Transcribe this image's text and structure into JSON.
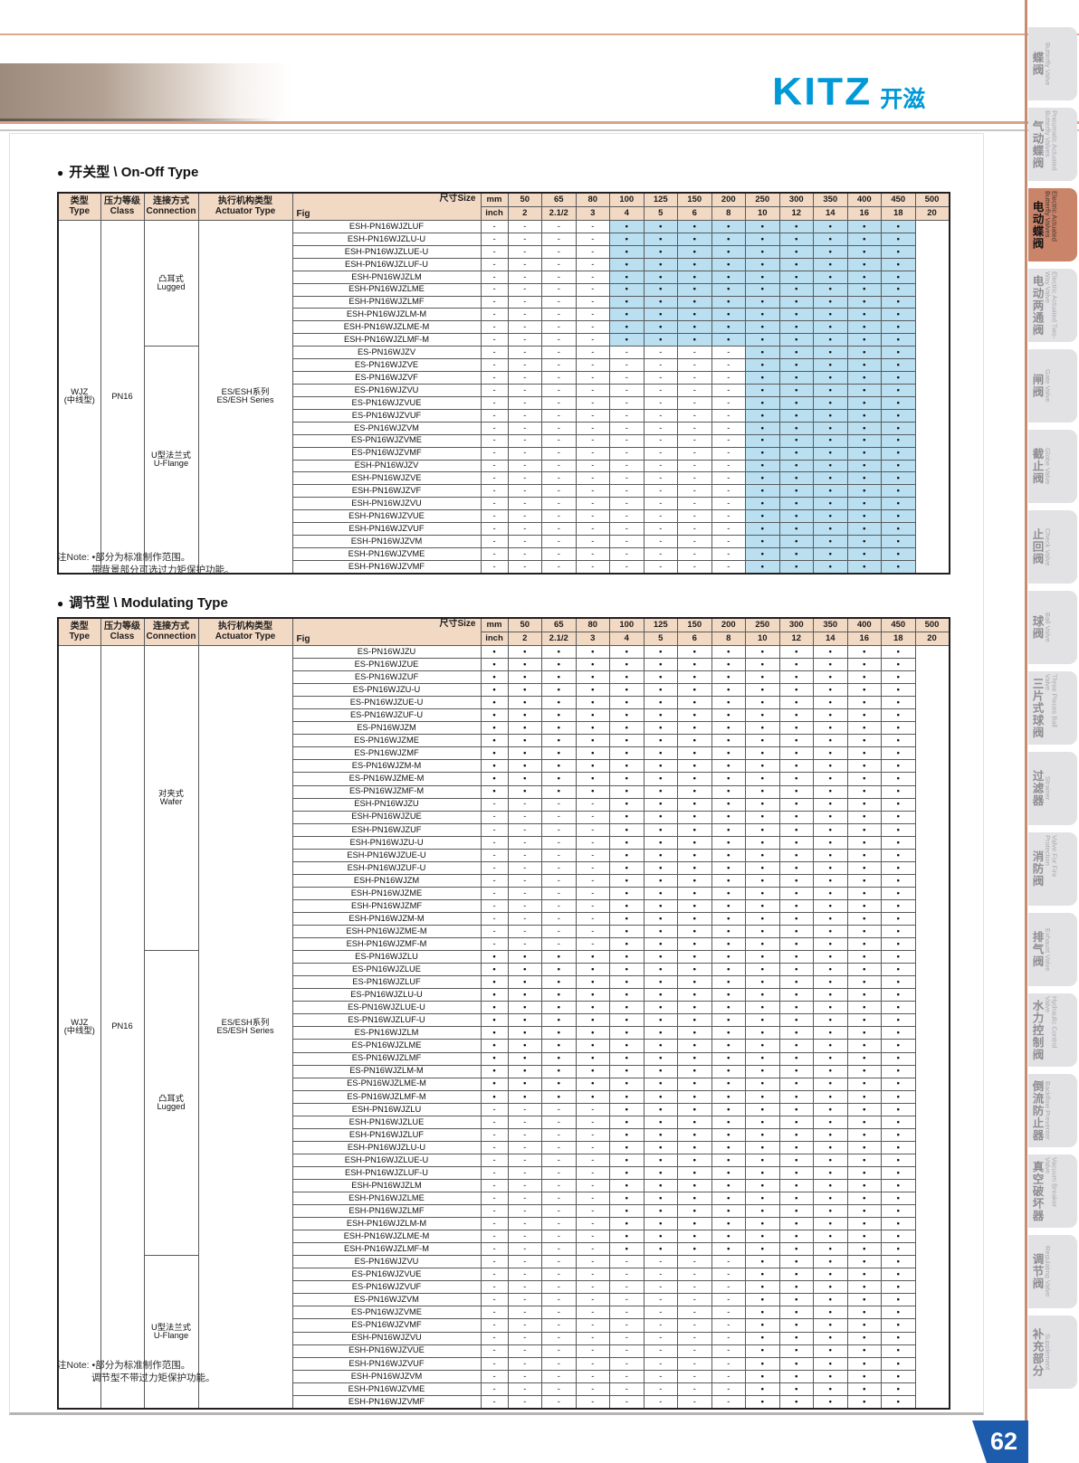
{
  "logo": {
    "brand": "KITZ",
    "brand_cn": "开滋"
  },
  "page": {
    "number": "62"
  },
  "colors": {
    "header_bg": "#f2d9c4",
    "highlight_bg": "#b9dff0",
    "logo_blue": "#0099d8",
    "spine_line": "#c58e73",
    "active_tab": "#c9846a",
    "page_badge": "#1d5cac"
  },
  "columns": {
    "type_zh": "类型",
    "type_en": "Type",
    "class_zh": "压力等级",
    "class_en": "Class",
    "conn_zh": "连接方式",
    "conn_en": "Connection",
    "act_zh": "执行机构类型",
    "act_en": "Actuator Type"
  },
  "size_header": {
    "size_label": "尺寸Size",
    "fig_label": "Fig",
    "mm_label": "mm",
    "inch_label": "inch",
    "mm": [
      "50",
      "65",
      "80",
      "100",
      "125",
      "150",
      "200",
      "250",
      "300",
      "350",
      "400",
      "450",
      "500"
    ],
    "inch": [
      "2",
      "2.1/2",
      "3",
      "4",
      "5",
      "6",
      "8",
      "10",
      "12",
      "14",
      "16",
      "18",
      "20"
    ]
  },
  "patterns": {
    "dash4_dot9_hl": {
      "marks": "----•••••••••",
      "hl": "0000111111111"
    },
    "dash8_dot5_hl": {
      "marks": "--------•••••",
      "hl": "0000000011111"
    },
    "dot13": {
      "marks": "•••••••••••••",
      "hl": "0000000000000"
    },
    "dash4_dot9": {
      "marks": "----•••••••••",
      "hl": "0000000000000"
    },
    "dash8_dot5": {
      "marks": "--------•••••",
      "hl": "0000000000000"
    }
  },
  "on_off": {
    "title": "开关型 \\ On-Off Type",
    "type_line1": "WJZ",
    "type_line2": "(中线型)",
    "class_label": "PN16",
    "actuator_line1": "ES/ESH系列",
    "actuator_line2": "ES/ESH Series",
    "connections": [
      {
        "zh": "凸耳式",
        "en": "Lugged",
        "rows": 10
      },
      {
        "zh": "U型法兰式",
        "en": "U-Flange",
        "rows": 18
      }
    ],
    "rows": [
      {
        "fig": "ESH-PN16WJZLUF",
        "pattern": "dash4_dot9_hl"
      },
      {
        "fig": "ESH-PN16WJZLU-U",
        "pattern": "dash4_dot9_hl"
      },
      {
        "fig": "ESH-PN16WJZLUE-U",
        "pattern": "dash4_dot9_hl"
      },
      {
        "fig": "ESH-PN16WJZLUF-U",
        "pattern": "dash4_dot9_hl"
      },
      {
        "fig": "ESH-PN16WJZLM",
        "pattern": "dash4_dot9_hl"
      },
      {
        "fig": "ESH-PN16WJZLME",
        "pattern": "dash4_dot9_hl"
      },
      {
        "fig": "ESH-PN16WJZLMF",
        "pattern": "dash4_dot9_hl"
      },
      {
        "fig": "ESH-PN16WJZLM-M",
        "pattern": "dash4_dot9_hl"
      },
      {
        "fig": "ESH-PN16WJZLME-M",
        "pattern": "dash4_dot9_hl"
      },
      {
        "fig": "ESH-PN16WJZLMF-M",
        "pattern": "dash4_dot9_hl"
      },
      {
        "fig": "ES-PN16WJZV",
        "pattern": "dash8_dot5_hl"
      },
      {
        "fig": "ES-PN16WJZVE",
        "pattern": "dash8_dot5_hl"
      },
      {
        "fig": "ES-PN16WJZVF",
        "pattern": "dash8_dot5_hl"
      },
      {
        "fig": "ES-PN16WJZVU",
        "pattern": "dash8_dot5_hl"
      },
      {
        "fig": "ES-PN16WJZVUE",
        "pattern": "dash8_dot5_hl"
      },
      {
        "fig": "ES-PN16WJZVUF",
        "pattern": "dash8_dot5_hl"
      },
      {
        "fig": "ES-PN16WJZVM",
        "pattern": "dash8_dot5_hl"
      },
      {
        "fig": "ES-PN16WJZVME",
        "pattern": "dash8_dot5_hl"
      },
      {
        "fig": "ES-PN16WJZVMF",
        "pattern": "dash8_dot5_hl"
      },
      {
        "fig": "ESH-PN16WJZV",
        "pattern": "dash8_dot5_hl"
      },
      {
        "fig": "ESH-PN16WJZVE",
        "pattern": "dash8_dot5_hl"
      },
      {
        "fig": "ESH-PN16WJZVF",
        "pattern": "dash8_dot5_hl"
      },
      {
        "fig": "ESH-PN16WJZVU",
        "pattern": "dash8_dot5_hl"
      },
      {
        "fig": "ESH-PN16WJZVUE",
        "pattern": "dash8_dot5_hl"
      },
      {
        "fig": "ESH-PN16WJZVUF",
        "pattern": "dash8_dot5_hl"
      },
      {
        "fig": "ESH-PN16WJZVM",
        "pattern": "dash8_dot5_hl"
      },
      {
        "fig": "ESH-PN16WJZVME",
        "pattern": "dash8_dot5_hl"
      },
      {
        "fig": "ESH-PN16WJZVMF",
        "pattern": "dash8_dot5_hl"
      }
    ],
    "note_prefix": "注Note:",
    "note_line1": "•部分为标准制作范围。",
    "note_line2": "带背景部分可选过力矩保护功能。"
  },
  "modulating": {
    "title": "调节型 \\ Modulating Type",
    "type_line1": "WJZ",
    "type_line2": "(中线型)",
    "class_label": "PN16",
    "actuator_line1": "ES/ESH系列",
    "actuator_line2": "ES/ESH Series",
    "connections": [
      {
        "zh": "对夹式",
        "en": "Wafer",
        "rows": 24
      },
      {
        "zh": "凸耳式",
        "en": "Lugged",
        "rows": 24
      },
      {
        "zh": "U型法兰式",
        "en": "U-Flange",
        "rows": 12
      }
    ],
    "rows": [
      {
        "fig": "ES-PN16WJZU",
        "pattern": "dot13"
      },
      {
        "fig": "ES-PN16WJZUE",
        "pattern": "dot13"
      },
      {
        "fig": "ES-PN16WJZUF",
        "pattern": "dot13"
      },
      {
        "fig": "ES-PN16WJZU-U",
        "pattern": "dot13"
      },
      {
        "fig": "ES-PN16WJZUE-U",
        "pattern": "dot13"
      },
      {
        "fig": "ES-PN16WJZUF-U",
        "pattern": "dot13"
      },
      {
        "fig": "ES-PN16WJZM",
        "pattern": "dot13"
      },
      {
        "fig": "ES-PN16WJZME",
        "pattern": "dot13"
      },
      {
        "fig": "ES-PN16WJZMF",
        "pattern": "dot13"
      },
      {
        "fig": "ES-PN16WJZM-M",
        "pattern": "dot13"
      },
      {
        "fig": "ES-PN16WJZME-M",
        "pattern": "dot13"
      },
      {
        "fig": "ES-PN16WJZMF-M",
        "pattern": "dot13"
      },
      {
        "fig": "ESH-PN16WJZU",
        "pattern": "dash4_dot9"
      },
      {
        "fig": "ESH-PN16WJZUE",
        "pattern": "dash4_dot9"
      },
      {
        "fig": "ESH-PN16WJZUF",
        "pattern": "dash4_dot9"
      },
      {
        "fig": "ESH-PN16WJZU-U",
        "pattern": "dash4_dot9"
      },
      {
        "fig": "ESH-PN16WJZUE-U",
        "pattern": "dash4_dot9"
      },
      {
        "fig": "ESH-PN16WJZUF-U",
        "pattern": "dash4_dot9"
      },
      {
        "fig": "ESH-PN16WJZM",
        "pattern": "dash4_dot9"
      },
      {
        "fig": "ESH-PN16WJZME",
        "pattern": "dash4_dot9"
      },
      {
        "fig": "ESH-PN16WJZMF",
        "pattern": "dash4_dot9"
      },
      {
        "fig": "ESH-PN16WJZM-M",
        "pattern": "dash4_dot9"
      },
      {
        "fig": "ESH-PN16WJZME-M",
        "pattern": "dash4_dot9"
      },
      {
        "fig": "ESH-PN16WJZMF-M",
        "pattern": "dash4_dot9"
      },
      {
        "fig": "ES-PN16WJZLU",
        "pattern": "dot13"
      },
      {
        "fig": "ES-PN16WJZLUE",
        "pattern": "dot13"
      },
      {
        "fig": "ES-PN16WJZLUF",
        "pattern": "dot13"
      },
      {
        "fig": "ES-PN16WJZLU-U",
        "pattern": "dot13"
      },
      {
        "fig": "ES-PN16WJZLUE-U",
        "pattern": "dot13"
      },
      {
        "fig": "ES-PN16WJZLUF-U",
        "pattern": "dot13"
      },
      {
        "fig": "ES-PN16WJZLM",
        "pattern": "dot13"
      },
      {
        "fig": "ES-PN16WJZLME",
        "pattern": "dot13"
      },
      {
        "fig": "ES-PN16WJZLMF",
        "pattern": "dot13"
      },
      {
        "fig": "ES-PN16WJZLM-M",
        "pattern": "dot13"
      },
      {
        "fig": "ES-PN16WJZLME-M",
        "pattern": "dot13"
      },
      {
        "fig": "ES-PN16WJZLMF-M",
        "pattern": "dot13"
      },
      {
        "fig": "ESH-PN16WJZLU",
        "pattern": "dash4_dot9"
      },
      {
        "fig": "ESH-PN16WJZLUE",
        "pattern": "dash4_dot9"
      },
      {
        "fig": "ESH-PN16WJZLUF",
        "pattern": "dash4_dot9"
      },
      {
        "fig": "ESH-PN16WJZLU-U",
        "pattern": "dash4_dot9"
      },
      {
        "fig": "ESH-PN16WJZLUE-U",
        "pattern": "dash4_dot9"
      },
      {
        "fig": "ESH-PN16WJZLUF-U",
        "pattern": "dash4_dot9"
      },
      {
        "fig": "ESH-PN16WJZLM",
        "pattern": "dash4_dot9"
      },
      {
        "fig": "ESH-PN16WJZLME",
        "pattern": "dash4_dot9"
      },
      {
        "fig": "ESH-PN16WJZLMF",
        "pattern": "dash4_dot9"
      },
      {
        "fig": "ESH-PN16WJZLM-M",
        "pattern": "dash4_dot9"
      },
      {
        "fig": "ESH-PN16WJZLME-M",
        "pattern": "dash4_dot9"
      },
      {
        "fig": "ESH-PN16WJZLMF-M",
        "pattern": "dash4_dot9"
      },
      {
        "fig": "ES-PN16WJZVU",
        "pattern": "dash8_dot5"
      },
      {
        "fig": "ES-PN16WJZVUE",
        "pattern": "dash8_dot5"
      },
      {
        "fig": "ES-PN16WJZVUF",
        "pattern": "dash8_dot5"
      },
      {
        "fig": "ES-PN16WJZVM",
        "pattern": "dash8_dot5"
      },
      {
        "fig": "ES-PN16WJZVME",
        "pattern": "dash8_dot5"
      },
      {
        "fig": "ES-PN16WJZVMF",
        "pattern": "dash8_dot5"
      },
      {
        "fig": "ESH-PN16WJZVU",
        "pattern": "dash8_dot5"
      },
      {
        "fig": "ESH-PN16WJZVUE",
        "pattern": "dash8_dot5"
      },
      {
        "fig": "ESH-PN16WJZVUF",
        "pattern": "dash8_dot5"
      },
      {
        "fig": "ESH-PN16WJZVM",
        "pattern": "dash8_dot5"
      },
      {
        "fig": "ESH-PN16WJZVME",
        "pattern": "dash8_dot5"
      },
      {
        "fig": "ESH-PN16WJZVMF",
        "pattern": "dash8_dot5"
      }
    ],
    "note_prefix": "注Note:",
    "note_line1": "•部分为标准制作范围。",
    "note_line2": "调节型不带过力矩保护功能。"
  },
  "sidebar": {
    "items": [
      {
        "zh": "蝶阀",
        "en": "Butterfly Valve",
        "active": false
      },
      {
        "zh": "气动蝶阀",
        "en": "Pneumatic Actuated Butterfly Valves",
        "active": false
      },
      {
        "zh": "电动蝶阀",
        "en": "Electric Actuated Butterfly Valves",
        "active": true
      },
      {
        "zh": "电动两通阀",
        "en": "Electric Actuated Two-Way Valve",
        "active": false
      },
      {
        "zh": "闸阀",
        "en": "Gate Valve",
        "active": false
      },
      {
        "zh": "截止阀",
        "en": "Globe Valve",
        "active": false
      },
      {
        "zh": "止回阀",
        "en": "Check Valve",
        "active": false
      },
      {
        "zh": "球阀",
        "en": "Ball Valve",
        "active": false
      },
      {
        "zh": "三片式球阀",
        "en": "Three Pieces Ball Valve",
        "active": false
      },
      {
        "zh": "过滤器",
        "en": "Strainer",
        "active": false
      },
      {
        "zh": "消防阀",
        "en": "Valve For Fire Protection",
        "active": false
      },
      {
        "zh": "排气阀",
        "en": "Exhaust Valve",
        "active": false
      },
      {
        "zh": "水力控制阀",
        "en": "Hydraulic Control Valve",
        "active": false
      },
      {
        "zh": "倒流防止器",
        "en": "Backflow Preventer",
        "active": false
      },
      {
        "zh": "真空破坏器",
        "en": "Vacuum Breaker Valve",
        "active": false
      },
      {
        "zh": "调节阀",
        "en": "Regulating Valve",
        "active": false
      },
      {
        "zh": "补充部分",
        "en": "Supplement",
        "active": false
      }
    ]
  }
}
